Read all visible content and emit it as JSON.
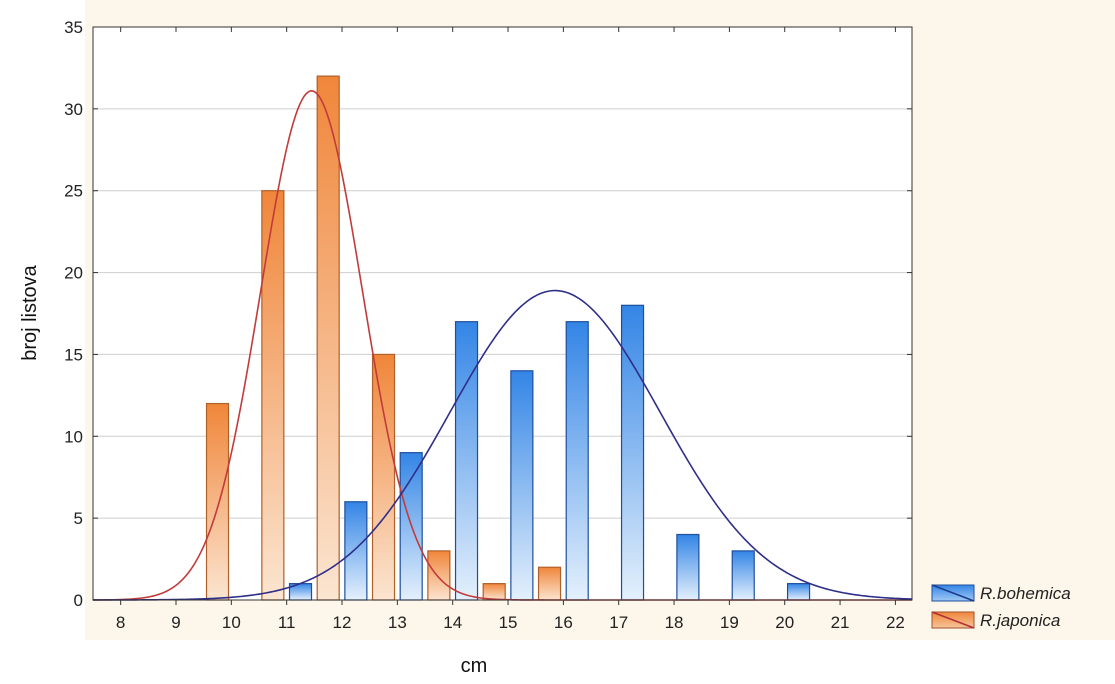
{
  "chart_data": {
    "type": "bar",
    "xlabel": "cm",
    "ylabel": "broj listova",
    "xlim": [
      7.5,
      22.3
    ],
    "ylim": [
      0,
      35
    ],
    "x_ticks": [
      "8",
      "9",
      "10",
      "11",
      "12",
      "13",
      "14",
      "15",
      "16",
      "17",
      "18",
      "19",
      "20",
      "21",
      "22"
    ],
    "y_ticks": [
      "0",
      "5",
      "10",
      "15",
      "20",
      "25",
      "30",
      "35"
    ],
    "grid": "horizontal",
    "legend_position": "bottom-right, outside plot",
    "series": [
      {
        "name": "R.japonica",
        "color": "#f08a3c",
        "x": [
          9.75,
          10.75,
          11.75,
          12.75,
          13.75,
          14.75,
          15.75
        ],
        "values": [
          12,
          25,
          32,
          15,
          3,
          1,
          2
        ],
        "curve": {
          "mean": 11.45,
          "peak": 31.1,
          "sd": 0.92
        }
      },
      {
        "name": "R.bohemica",
        "color": "#2f7fe0",
        "x": [
          11.25,
          12.25,
          13.25,
          14.25,
          15.25,
          16.25,
          17.25,
          18.25,
          19.25,
          20.25
        ],
        "values": [
          1,
          6,
          9,
          17,
          14,
          17,
          18,
          4,
          3,
          1
        ],
        "curve": {
          "mean": 15.85,
          "peak": 18.9,
          "sd": 1.9
        }
      }
    ]
  }
}
